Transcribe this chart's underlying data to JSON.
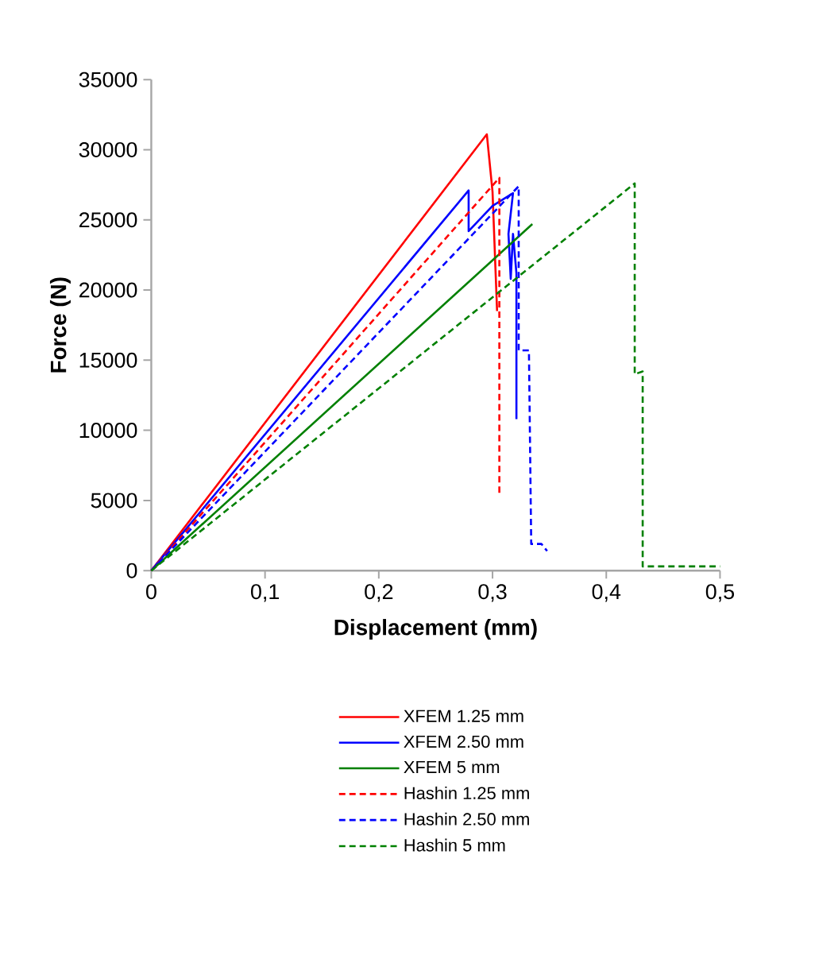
{
  "chart_data": {
    "type": "line",
    "xlabel": "Displacement (mm)",
    "ylabel": "Force (N)",
    "xlim": [
      0,
      0.5
    ],
    "ylim": [
      0,
      35000
    ],
    "xticks": [
      0,
      {
        "value": 0.1,
        "label": "0,1"
      },
      {
        "value": 0.2,
        "label": "0,2"
      },
      {
        "value": 0.3,
        "label": "0,3"
      },
      {
        "value": 0.4,
        "label": "0,4"
      },
      {
        "value": 0.5,
        "label": "0,5"
      }
    ],
    "yticks": [
      0,
      5000,
      10000,
      15000,
      20000,
      25000,
      30000,
      35000
    ],
    "legend": "bottom",
    "grid": false,
    "series": [
      {
        "name": "XFEM 1.25 mm",
        "color": "#ff0000",
        "line_style": "solid",
        "x": [
          0,
          0.295,
          0.3,
          0.304
        ],
        "values": [
          0,
          31100,
          27000,
          18500
        ]
      },
      {
        "name": "XFEM 2.50 mm",
        "color": "#0000ff",
        "line_style": "solid",
        "x": [
          0,
          0.279,
          0.279,
          0.3,
          0.318,
          0.314,
          0.316,
          0.318,
          0.321,
          0.321
        ],
        "values": [
          0,
          27100,
          24200,
          26000,
          26900,
          24000,
          20800,
          24000,
          21200,
          10800
        ]
      },
      {
        "name": "XFEM 5 mm",
        "color": "#008000",
        "line_style": "solid",
        "x": [
          0,
          0.335
        ],
        "values": [
          0,
          24700
        ]
      },
      {
        "name": "Hashin 1.25 mm",
        "color": "#ff0000",
        "line_style": "dashed",
        "x": [
          0,
          0.306,
          0.306
        ],
        "values": [
          0,
          28000,
          5500
        ]
      },
      {
        "name": "Hashin 2.50 mm",
        "color": "#0000ff",
        "line_style": "dashed",
        "x": [
          0,
          0.323,
          0.323,
          0.332,
          0.334,
          0.343,
          0.348
        ],
        "values": [
          0,
          27400,
          15700,
          15700,
          1900,
          1900,
          1400
        ]
      },
      {
        "name": "Hashin 5 mm",
        "color": "#008000",
        "line_style": "dashed",
        "x": [
          0,
          0.425,
          0.425,
          0.432,
          0.432,
          0.5
        ],
        "values": [
          0,
          27600,
          14000,
          14200,
          300,
          300
        ]
      }
    ]
  }
}
